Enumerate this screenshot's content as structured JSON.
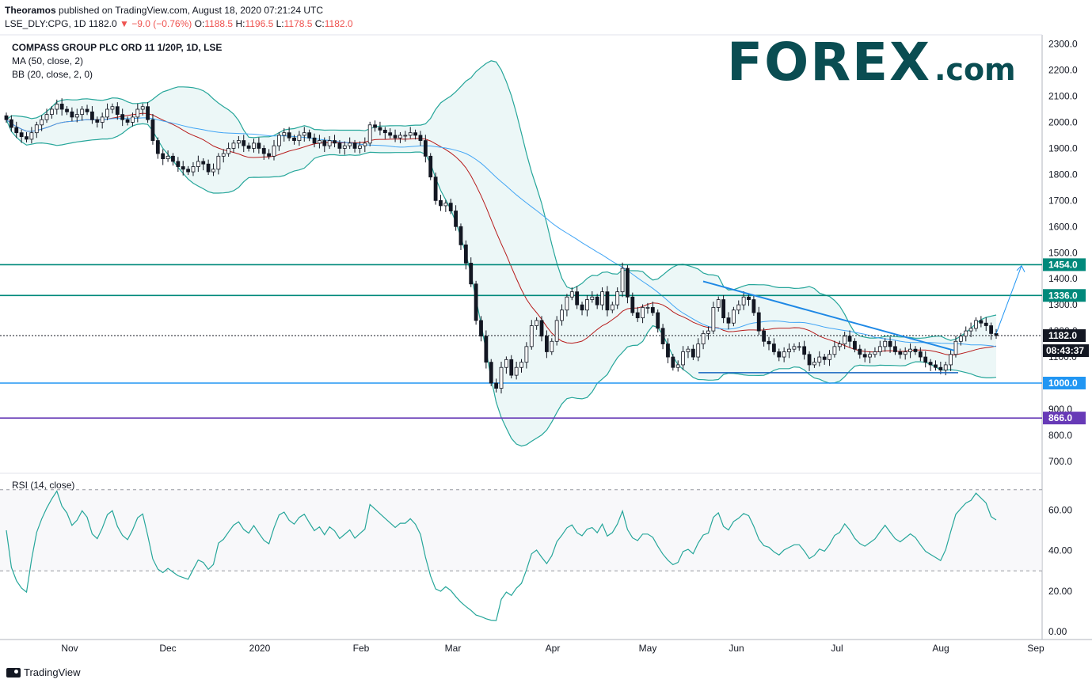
{
  "header": {
    "publisher": "Theoramos",
    "published_text": "published on TradingView.com, August 18, 2020 07:21:24 UTC",
    "symbol": "LSE_DLY:CPG, 1D",
    "price": "1182.0",
    "change": "▼ −9.0 (−0.76%)",
    "o_label": "O:",
    "o": "1188.5",
    "h_label": "H:",
    "h": "1196.5",
    "l_label": "L:",
    "l": "1178.5",
    "c_label": "C:",
    "c": "1182.0"
  },
  "legend": {
    "title": "COMPASS GROUP PLC ORD 11 1/20P, 1D, LSE",
    "ma": "MA (50, close, 2)",
    "bb": "BB (20, close, 2, 0)",
    "rsi": "RSI (14, close)"
  },
  "logo": {
    "main": "FOREX",
    "suffix": ".com"
  },
  "footer": {
    "brand": "TradingView"
  },
  "colors": {
    "candle": "#131722",
    "bb_band": "#26a69a",
    "bb_fill": "#e0f2f1",
    "ma": "#b71c1c",
    "bb_basis": "#42a5f5",
    "level_teal": "#00897b",
    "level_blue": "#2196f3",
    "level_purple": "#673ab7",
    "trend": "#1e88e5",
    "rsi_line": "#26a69a",
    "label_bg": "#00897b"
  },
  "chart_data": {
    "type": "candlestick",
    "price_axis": {
      "ylim": [
        640,
        2330
      ],
      "ticks": [
        "700.0",
        "800.0",
        "900.0",
        "1000.0",
        "1100.0",
        "1200.0",
        "1300.0",
        "1400.0",
        "1500.0",
        "1600.0",
        "1700.0",
        "1800.0",
        "1900.0",
        "2000.0",
        "2100.0",
        "2200.0",
        "2300.0"
      ]
    },
    "x_axis": {
      "labels": [
        "Nov",
        "Dec",
        "2020",
        "Feb",
        "Mar",
        "Apr",
        "May",
        "Jun",
        "Jul",
        "Aug",
        "Sep"
      ]
    },
    "levels": [
      {
        "value": 1454.0,
        "label": "1454.0",
        "color": "teal"
      },
      {
        "value": 1336.0,
        "label": "1336.0",
        "color": "teal"
      },
      {
        "value": 1000.0,
        "label": "1000.0",
        "color": "blue"
      },
      {
        "value": 866.0,
        "label": "866.0",
        "color": "purple"
      }
    ],
    "last_price": {
      "value": 1182.0,
      "label": "1182.0",
      "countdown": "08:43:37"
    },
    "close_series": [
      2010,
      1980,
      1960,
      1945,
      1935,
      1960,
      1990,
      2010,
      2030,
      2050,
      2070,
      2050,
      2040,
      2020,
      2030,
      2050,
      2040,
      2010,
      2000,
      2020,
      2050,
      2060,
      2030,
      2010,
      2000,
      2020,
      2050,
      2060,
      2010,
      1930,
      1880,
      1860,
      1870,
      1850,
      1830,
      1820,
      1810,
      1830,
      1850,
      1840,
      1810,
      1820,
      1870,
      1880,
      1900,
      1920,
      1930,
      1910,
      1900,
      1920,
      1900,
      1880,
      1870,
      1910,
      1950,
      1960,
      1940,
      1930,
      1950,
      1960,
      1940,
      1920,
      1930,
      1910,
      1930,
      1920,
      1900,
      1910,
      1920,
      1900,
      1910,
      1920,
      1990,
      1980,
      1970,
      1960,
      1950,
      1940,
      1950,
      1950,
      1960,
      1950,
      1930,
      1870,
      1790,
      1700,
      1680,
      1690,
      1660,
      1600,
      1530,
      1460,
      1380,
      1240,
      1180,
      1080,
      1000,
      980,
      1060,
      1090,
      1030,
      1060,
      1080,
      1140,
      1220,
      1240,
      1180,
      1120,
      1160,
      1240,
      1280,
      1330,
      1350,
      1300,
      1280,
      1320,
      1330,
      1300,
      1350,
      1280,
      1300,
      1350,
      1440,
      1330,
      1270,
      1250,
      1290,
      1290,
      1270,
      1210,
      1150,
      1100,
      1060,
      1070,
      1120,
      1130,
      1100,
      1150,
      1190,
      1200,
      1290,
      1320,
      1250,
      1230,
      1280,
      1300,
      1330,
      1320,
      1270,
      1200,
      1160,
      1150,
      1120,
      1100,
      1120,
      1130,
      1140,
      1140,
      1110,
      1070,
      1080,
      1100,
      1090,
      1110,
      1140,
      1150,
      1180,
      1160,
      1130,
      1110,
      1100,
      1110,
      1120,
      1140,
      1160,
      1140,
      1120,
      1110,
      1120,
      1130,
      1120,
      1100,
      1080,
      1070,
      1060,
      1050,
      1070,
      1110,
      1160,
      1180,
      1200,
      1210,
      1240,
      1230,
      1220,
      1190,
      1182
    ],
    "rsi_axis": {
      "ylim": [
        0,
        75
      ],
      "ticks": [
        "0.00",
        "20.00",
        "40.00",
        "60.00"
      ],
      "bands": [
        30,
        70
      ]
    }
  }
}
